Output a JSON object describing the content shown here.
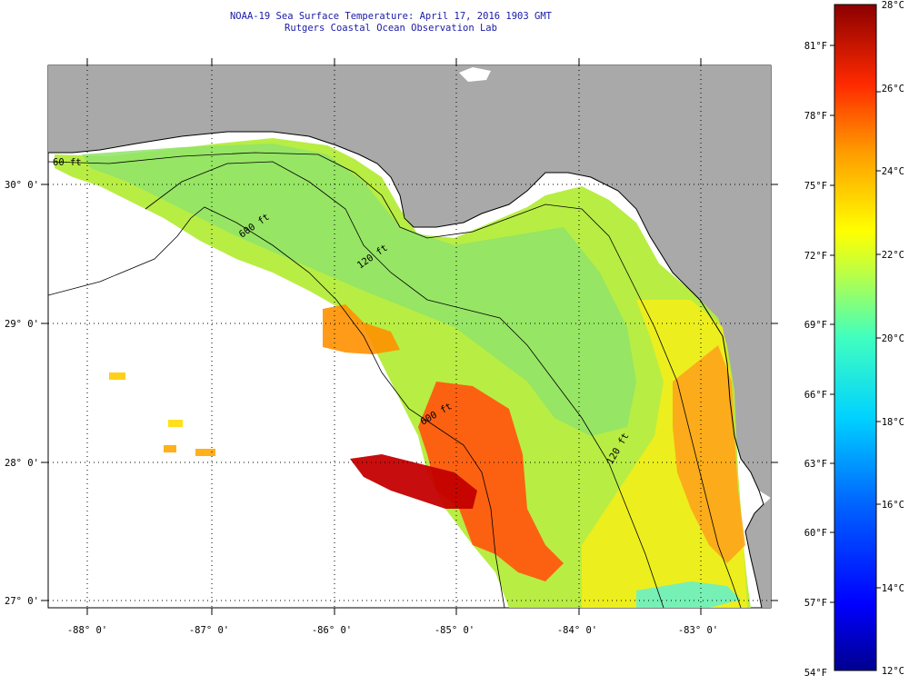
{
  "header": {
    "title": "NOAA-19 Sea Surface Temperature:  April 17, 2016 1903 GMT",
    "subtitle": "Rutgers Coastal Ocean Observation Lab"
  },
  "map": {
    "lon_labels": [
      "-88° 0'",
      "-87° 0'",
      "-86° 0'",
      "-85° 0'",
      "-84° 0'",
      "-83° 0'"
    ],
    "lat_labels": [
      "30° 0'",
      "29° 0'",
      "28° 0'",
      "27° 0'"
    ],
    "contour_labels": [
      "60 ft",
      "120 ft",
      "600 ft",
      "600 ft",
      "120 ft"
    ],
    "colors": {
      "land": "#a9a9a9",
      "nodata": "#ffffff"
    }
  },
  "colorbar": {
    "fahrenheit_labels": [
      "81°F",
      "78°F",
      "75°F",
      "72°F",
      "69°F",
      "66°F",
      "63°F",
      "60°F",
      "57°F",
      "54°F"
    ],
    "celsius_labels": [
      "28°C",
      "26°C",
      "24°C",
      "22°C",
      "20°C",
      "18°C",
      "16°C",
      "14°C",
      "12°C"
    ],
    "range_c": [
      12,
      28
    ]
  }
}
